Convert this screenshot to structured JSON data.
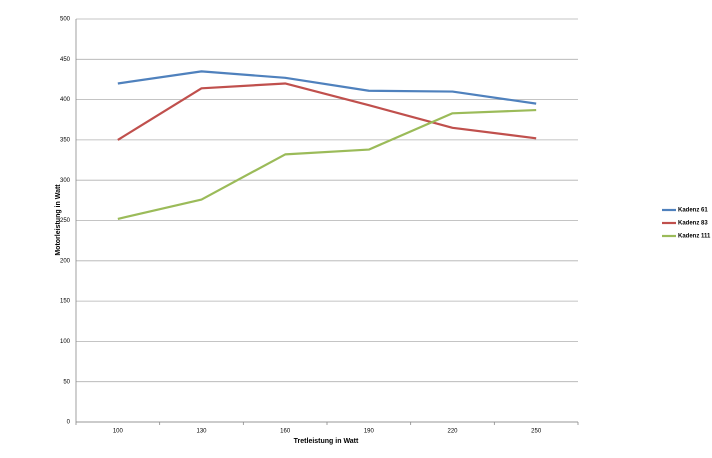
{
  "chart_data": {
    "type": "line",
    "x_label": "Tretleistung in Watt",
    "y_label": "Motorleistung in Watt",
    "categories": [
      "100",
      "130",
      "160",
      "190",
      "220",
      "250"
    ],
    "series": [
      {
        "name": "Kadenz 61",
        "color": "#4f81bd",
        "values": [
          420,
          435,
          427,
          411,
          410,
          395
        ]
      },
      {
        "name": "Kadenz 83",
        "color": "#c0504d",
        "values": [
          350,
          414,
          420,
          393,
          365,
          352
        ]
      },
      {
        "name": "Kadenz 111",
        "color": "#9bbb59",
        "values": [
          252,
          276,
          332,
          338,
          383,
          387
        ]
      }
    ],
    "ylim": [
      0,
      500
    ],
    "yticks": [
      0,
      50,
      100,
      150,
      200,
      250,
      300,
      350,
      400,
      450,
      500
    ],
    "grid": true,
    "legend": "right"
  }
}
